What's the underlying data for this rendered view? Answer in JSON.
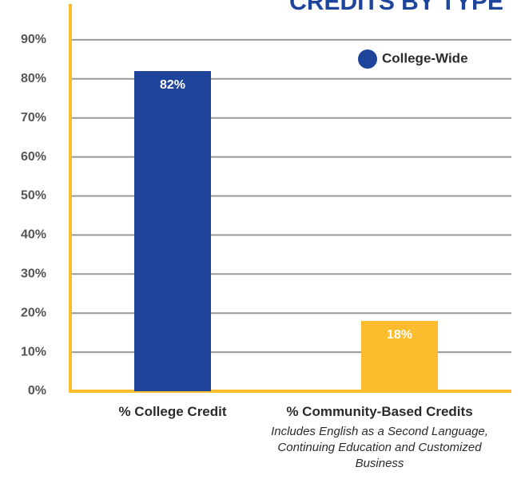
{
  "chart_data": {
    "type": "bar",
    "title": "CREDITS BY TYPE",
    "categories": [
      "% College Credit",
      "% Community-Based Credits"
    ],
    "annotation": "Includes English as a Second Language, Continuing Education and Customized Business",
    "series": [
      {
        "name": "College-Wide",
        "color": "#1f449c",
        "values": [
          82,
          18
        ],
        "value_labels": [
          "82%",
          "18%"
        ]
      }
    ],
    "colors": [
      "#1f449c",
      "#fbbc2e"
    ],
    "ylim": [
      0,
      100
    ],
    "yticks": [
      {
        "value": 0,
        "label": "0%"
      },
      {
        "value": 10,
        "label": "10%"
      },
      {
        "value": 20,
        "label": "20%"
      },
      {
        "value": 30,
        "label": "30%"
      },
      {
        "value": 40,
        "label": "40%"
      },
      {
        "value": 50,
        "label": "50%"
      },
      {
        "value": 60,
        "label": "60%"
      },
      {
        "value": 70,
        "label": "70%"
      },
      {
        "value": 80,
        "label": "80%"
      },
      {
        "value": 90,
        "label": "90%"
      }
    ],
    "grid": true,
    "legend": "upper right"
  }
}
